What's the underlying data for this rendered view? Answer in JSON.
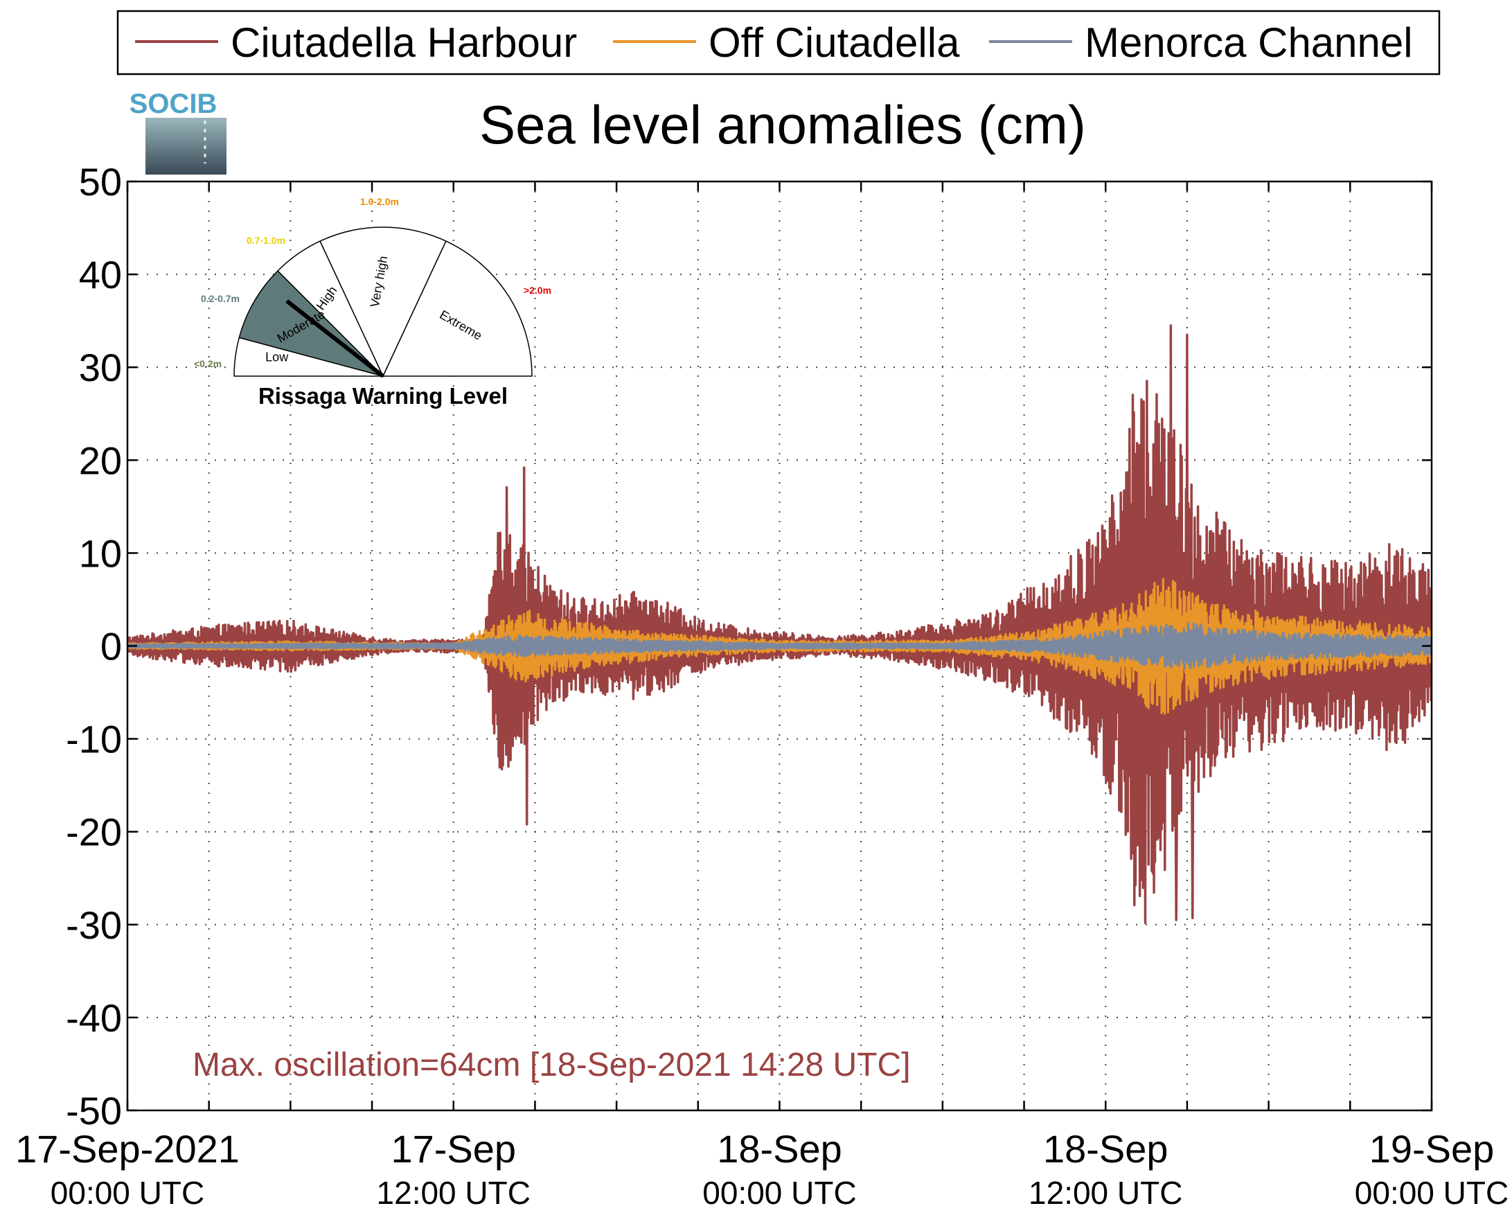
{
  "chart_data": {
    "type": "line",
    "title": "Sea level anomalies (cm)",
    "xlabel": "",
    "ylabel": "",
    "ylim": [
      -50,
      50
    ],
    "yticks": [
      50,
      40,
      30,
      20,
      10,
      0,
      -10,
      -20,
      -30,
      -40,
      -50
    ],
    "ytick_labels": [
      "50",
      "40",
      "30",
      "20",
      "10",
      "0",
      "-10",
      "-20",
      "-30",
      "-40",
      "-50"
    ],
    "xlim_hours": [
      0,
      48
    ],
    "xtick_labels": [
      {
        "hour": 0,
        "line1": "17-Sep-2021",
        "line2": "00:00 UTC"
      },
      {
        "hour": 12,
        "line1": "17-Sep",
        "line2": "12:00 UTC"
      },
      {
        "hour": 24,
        "line1": "18-Sep",
        "line2": "00:00 UTC"
      },
      {
        "hour": 36,
        "line1": "18-Sep",
        "line2": "12:00 UTC"
      },
      {
        "hour": 48,
        "line1": "19-Sep",
        "line2": "00:00 UTC"
      }
    ],
    "grid": "dotted",
    "legend_position": "top",
    "series": [
      {
        "name": "Ciutadella Harbour",
        "color": "#9b4242",
        "envelope": [
          [
            0,
            1
          ],
          [
            2,
            1.8
          ],
          [
            4,
            2.5
          ],
          [
            6,
            2.8
          ],
          [
            8,
            1.5
          ],
          [
            10,
            0.6
          ],
          [
            13.1,
            0.8
          ],
          [
            13.9,
            18
          ],
          [
            14.3,
            12
          ],
          [
            15,
            9
          ],
          [
            16,
            6
          ],
          [
            17,
            5
          ],
          [
            19,
            6
          ],
          [
            21,
            3
          ],
          [
            23,
            1.8
          ],
          [
            26,
            1
          ],
          [
            28,
            1.5
          ],
          [
            30,
            2.5
          ],
          [
            32,
            4
          ],
          [
            34,
            8
          ],
          [
            35.5,
            12
          ],
          [
            36.5,
            18
          ],
          [
            37.2,
            32
          ],
          [
            37.8,
            28
          ],
          [
            38.5,
            24
          ],
          [
            39.5,
            16
          ],
          [
            41,
            12
          ],
          [
            43,
            10
          ],
          [
            45,
            9
          ],
          [
            46.5,
            12
          ],
          [
            48,
            8
          ]
        ],
        "peaks": [
          {
            "hour": 14.6,
            "value": 19.2
          },
          {
            "hour": 14.7,
            "value": -19.2
          },
          {
            "hour": 38.4,
            "value": 34.5
          },
          {
            "hour": 38.6,
            "value": -29.5
          },
          {
            "hour": 39.0,
            "value": 33.5
          },
          {
            "hour": 39.2,
            "value": -29.3
          }
        ]
      },
      {
        "name": "Off Ciutadella",
        "color": "#e8962a",
        "envelope": [
          [
            0,
            0.3
          ],
          [
            6,
            0.5
          ],
          [
            12,
            0.3
          ],
          [
            13.5,
            2.5
          ],
          [
            14.5,
            4
          ],
          [
            16,
            3
          ],
          [
            18,
            2
          ],
          [
            20,
            1.3
          ],
          [
            24,
            0.6
          ],
          [
            30,
            0.6
          ],
          [
            33,
            1.5
          ],
          [
            35,
            3
          ],
          [
            37,
            5
          ],
          [
            38,
            8
          ],
          [
            39,
            6
          ],
          [
            41,
            4
          ],
          [
            44,
            3
          ],
          [
            48,
            2
          ]
        ]
      },
      {
        "name": "Menorca Channel",
        "color": "#7a88a0",
        "envelope": [
          [
            0,
            0.2
          ],
          [
            12,
            0.3
          ],
          [
            14,
            1.2
          ],
          [
            16,
            1
          ],
          [
            20,
            0.6
          ],
          [
            24,
            0.3
          ],
          [
            30,
            0.3
          ],
          [
            34,
            0.8
          ],
          [
            37,
            2
          ],
          [
            39,
            2.5
          ],
          [
            42,
            1.5
          ],
          [
            48,
            1
          ]
        ]
      }
    ],
    "annotation": "Max. oscillation=64cm [18-Sep-2021 14:28 UTC]"
  },
  "colors": {
    "harbour": "#9b4242",
    "offshore": "#e8962a",
    "channel": "#7a88a0",
    "socib_logo": "#4fa3c8",
    "gauge_fill": "#5f7a7a"
  },
  "logo": {
    "text": "SOCIB"
  },
  "gauge": {
    "title": "Rissaga Warning Level",
    "current_level": "Moderate",
    "sectors": [
      {
        "label": "Low",
        "range": "<0.2m",
        "range_color": "#6a7a4a"
      },
      {
        "label": "Moderate",
        "range": "0.2-0.7m",
        "range_color": "#5f7a7a"
      },
      {
        "label": "High",
        "range": "0.7-1.0m",
        "range_color": "#e8d000"
      },
      {
        "label": "Very high",
        "range": "1.0-2.0m",
        "range_color": "#f08a00"
      },
      {
        "label": "Extreme",
        "range": ">2.0m",
        "range_color": "#e00000"
      }
    ]
  }
}
